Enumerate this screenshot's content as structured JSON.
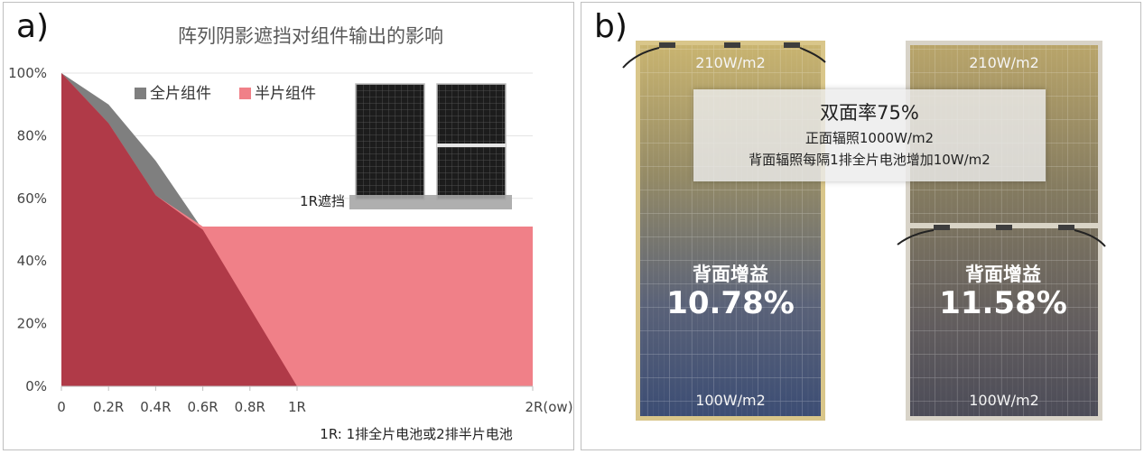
{
  "panel_a": {
    "label": "a)",
    "note": "1R: 1排全片电池或2排半片电池",
    "shade_label": "1R遮挡"
  },
  "panel_b": {
    "label": "b)",
    "info": {
      "title": "双面率75%",
      "line1": "正面辐照1000W/m2",
      "line2": "背面辐照每隔1排全片电池增加10W/m2"
    },
    "left_module": {
      "top_irr": "210W/m2",
      "bottom_irr": "100W/m2",
      "gain_label": "背面增益",
      "gain_value": "10.78%"
    },
    "right_module": {
      "top_irr": "210W/m2",
      "bottom_irr": "100W/m2",
      "gain_label": "背面增益",
      "gain_value": "11.58%"
    }
  },
  "chart_data": {
    "type": "area",
    "title": "阵列阴影遮挡对组件输出的影响",
    "xlabel": "",
    "ylabel": "",
    "x_ticks": [
      "0",
      "0.2R",
      "0.4R",
      "0.6R",
      "0.8R",
      "1R",
      "2R(ow)"
    ],
    "y_ticks": [
      "0%",
      "20%",
      "40%",
      "60%",
      "80%",
      "100%"
    ],
    "ylim": [
      0,
      100
    ],
    "xlim": [
      0,
      2
    ],
    "grid": true,
    "legend_position": "top",
    "colors": {
      "full": "#7f7f7f",
      "half": "#f08088",
      "overlap": "#b03a48"
    },
    "series": [
      {
        "name": "全片组件",
        "x": [
          0,
          0.2,
          0.4,
          0.6,
          1.0,
          2.0
        ],
        "values": [
          100,
          90,
          72,
          50,
          0,
          0
        ]
      },
      {
        "name": "半片组件",
        "x": [
          0,
          0.2,
          0.4,
          0.6,
          2.0
        ],
        "values": [
          100,
          84,
          61,
          51,
          51
        ]
      }
    ]
  }
}
